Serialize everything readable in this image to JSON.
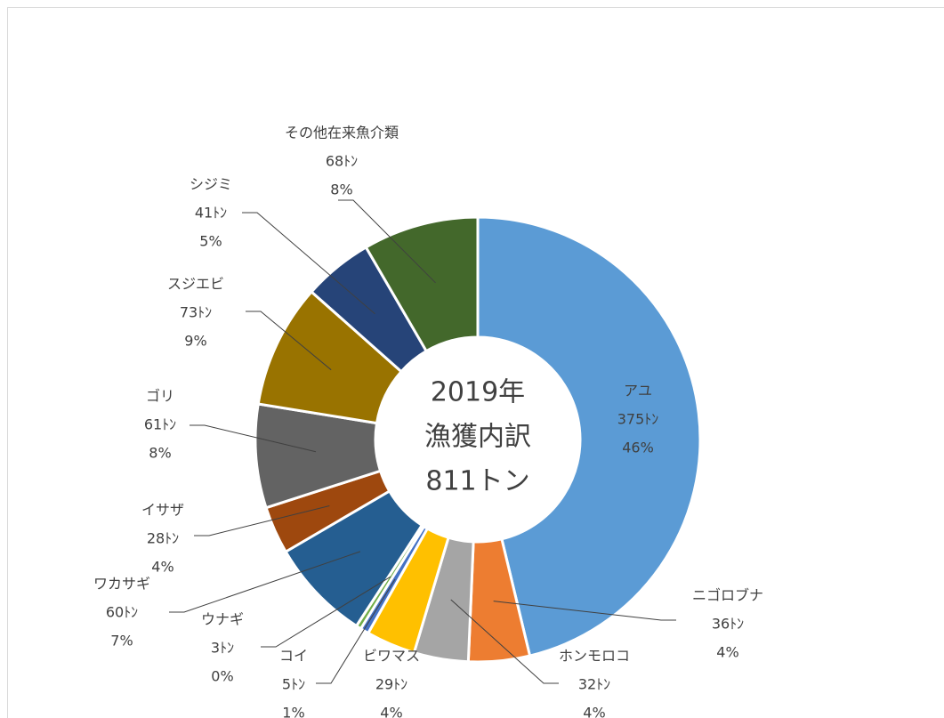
{
  "chart_data": {
    "type": "donut",
    "title": [
      "2019年",
      "漁獲内訳",
      "811トン"
    ],
    "categories": [
      "アユ",
      "ニゴロブナ",
      "ホンモロコ",
      "ビワマス",
      "コイ",
      "ウナギ",
      "ワカサギ",
      "イサザ",
      "ゴリ",
      "スジエビ",
      "シジミ",
      "その他在来魚介類"
    ],
    "values": [
      375,
      36,
      32,
      29,
      5,
      3,
      60,
      28,
      61,
      73,
      41,
      68
    ],
    "value_labels": [
      "375ﾄﾝ",
      "36ﾄﾝ",
      "32ﾄﾝ",
      "29ﾄﾝ",
      "5ﾄﾝ",
      "3ﾄﾝ",
      "60ﾄﾝ",
      "28ﾄﾝ",
      "61ﾄﾝ",
      "73ﾄﾝ",
      "41ﾄﾝ",
      "68ﾄﾝ"
    ],
    "percents": [
      46,
      4,
      4,
      4,
      1,
      0,
      7,
      4,
      8,
      9,
      5,
      8
    ],
    "percent_labels": [
      "46%",
      "4%",
      "4%",
      "4%",
      "1%",
      "0%",
      "7%",
      "4%",
      "8%",
      "9%",
      "5%",
      "8%"
    ],
    "colors": [
      "#5b9bd5",
      "#ed7d31",
      "#a5a5a5",
      "#ffc000",
      "#4472c4",
      "#70ad47",
      "#255e91",
      "#9e480e",
      "#636363",
      "#997300",
      "#264478",
      "#43682b"
    ]
  }
}
